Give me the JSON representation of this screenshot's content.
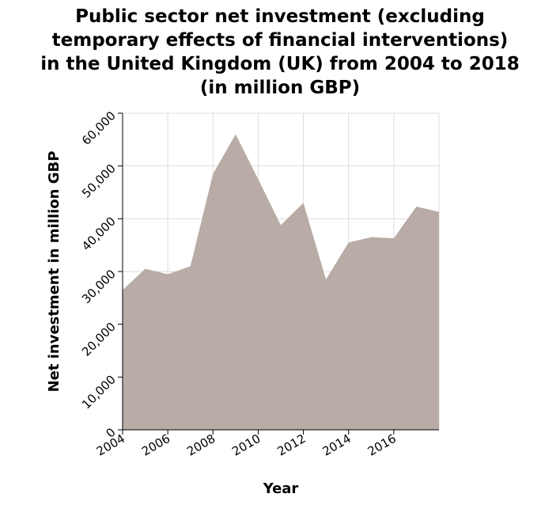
{
  "chart_data": {
    "type": "area",
    "title_lines": [
      "Public sector net investment (excluding",
      "temporary effects of financial interventions)",
      "in the United Kingdom (UK) from 2004 to 2018",
      "(in million GBP)"
    ],
    "xlabel": "Year",
    "ylabel": "Net investment in million GBP",
    "x": [
      2004,
      2005,
      2006,
      2007,
      2008,
      2009,
      2010,
      2011,
      2012,
      2013,
      2014,
      2015,
      2016,
      2017,
      2018
    ],
    "values": [
      26500,
      30500,
      29500,
      31000,
      48500,
      56000,
      47500,
      38800,
      43000,
      28500,
      35500,
      36500,
      36300,
      42300,
      41300
    ],
    "xlim": [
      2004,
      2018
    ],
    "ylim": [
      0,
      60000
    ],
    "x_ticks": [
      2004,
      2006,
      2008,
      2010,
      2012,
      2014,
      2016
    ],
    "x_tick_labels": [
      "2004",
      "2006",
      "2008",
      "2010",
      "2012",
      "2014",
      "2016"
    ],
    "y_ticks": [
      0,
      10000,
      20000,
      30000,
      40000,
      50000,
      60000
    ],
    "y_tick_labels": [
      "0",
      "10,000",
      "20,000",
      "30,000",
      "40,000",
      "50,000",
      "60,000"
    ],
    "grid": true,
    "legend": "none",
    "fill_color": "#b9aca6",
    "grid_color": "#dddddd",
    "axis_color": "#000000"
  }
}
